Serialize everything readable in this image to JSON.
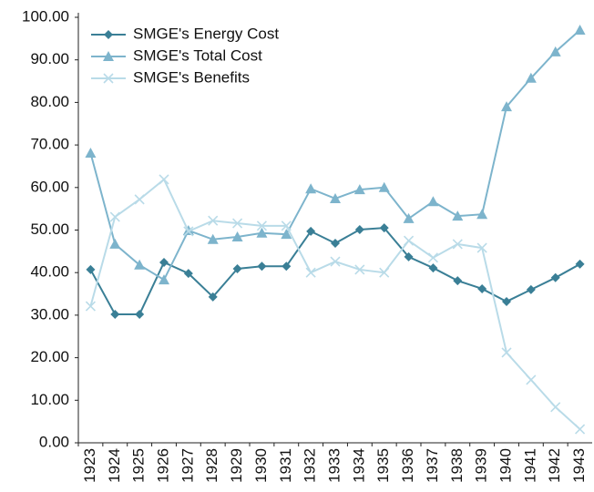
{
  "chart_data": {
    "type": "line",
    "categories": [
      "1923",
      "1924",
      "1925",
      "1926",
      "1927",
      "1928",
      "1929",
      "1930",
      "1931",
      "1932",
      "1933",
      "1934",
      "1935",
      "1936",
      "1937",
      "1938",
      "1939",
      "1940",
      "1941",
      "1942",
      "1943"
    ],
    "series": [
      {
        "name": "SMGE's Energy Cost",
        "color": "#3a7f96",
        "marker": "diamond",
        "values": [
          40.7,
          30.2,
          30.2,
          42.4,
          39.8,
          34.3,
          40.9,
          41.5,
          41.5,
          49.7,
          46.9,
          50.1,
          50.5,
          43.7,
          41.1,
          38.1,
          36.2,
          33.2,
          36.0,
          38.8,
          42.0
        ]
      },
      {
        "name": "SMGE's Total Cost",
        "color": "#7db4cc",
        "marker": "triangle",
        "values": [
          68.1,
          46.7,
          41.8,
          38.3,
          49.9,
          47.8,
          48.4,
          49.3,
          49.0,
          59.7,
          57.4,
          59.5,
          60.0,
          52.7,
          56.7,
          53.3,
          53.7,
          79.0,
          85.7,
          91.9,
          97.0
        ]
      },
      {
        "name": "SMGE's Benefits",
        "color": "#b9dbe8",
        "marker": "x",
        "values": [
          32.1,
          53.1,
          57.2,
          61.9,
          49.7,
          52.2,
          51.6,
          51.0,
          51.0,
          40.0,
          42.6,
          40.7,
          40.0,
          47.5,
          43.5,
          46.7,
          45.8,
          21.2,
          14.8,
          8.4,
          3.2
        ]
      }
    ],
    "ylim": [
      0,
      100
    ],
    "yticks": [
      {
        "value": 0,
        "label": "0.00"
      },
      {
        "value": 10,
        "label": "10.00"
      },
      {
        "value": 20,
        "label": "20.00"
      },
      {
        "value": 30,
        "label": "30.00"
      },
      {
        "value": 40,
        "label": "40.00"
      },
      {
        "value": 50,
        "label": "50.00"
      },
      {
        "value": 60,
        "label": "60.00"
      },
      {
        "value": 70,
        "label": "70.00"
      },
      {
        "value": 80,
        "label": "80.00"
      },
      {
        "value": 90,
        "label": "90.00"
      },
      {
        "value": 100,
        "label": "100.00"
      }
    ],
    "grid": false,
    "legend": "top-left"
  }
}
